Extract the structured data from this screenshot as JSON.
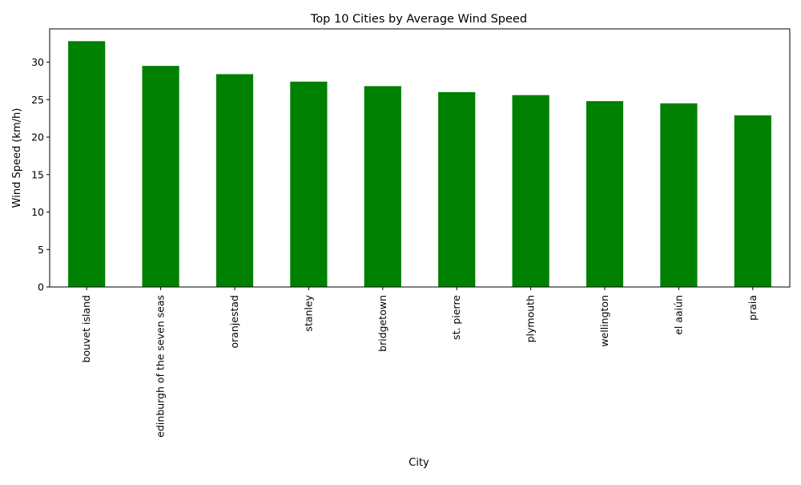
{
  "chart_data": {
    "type": "bar",
    "title": "Top 10 Cities by Average Wind Speed",
    "xlabel": "City",
    "ylabel": "Wind Speed (km/h)",
    "categories": [
      "bouvet island",
      "edinburgh of the seven seas",
      "oranjestad",
      "stanley",
      "bridgetown",
      "st. pierre",
      "plymouth",
      "wellington",
      "el aaiún",
      "praia"
    ],
    "values": [
      32.8,
      29.5,
      28.4,
      27.4,
      26.8,
      26.0,
      25.6,
      24.8,
      24.5,
      22.9
    ],
    "ylim": [
      0,
      34.44
    ],
    "yticks": [
      0,
      5,
      10,
      15,
      20,
      25,
      30
    ],
    "bar_color": "#008000",
    "grid": false,
    "legend": "none"
  }
}
